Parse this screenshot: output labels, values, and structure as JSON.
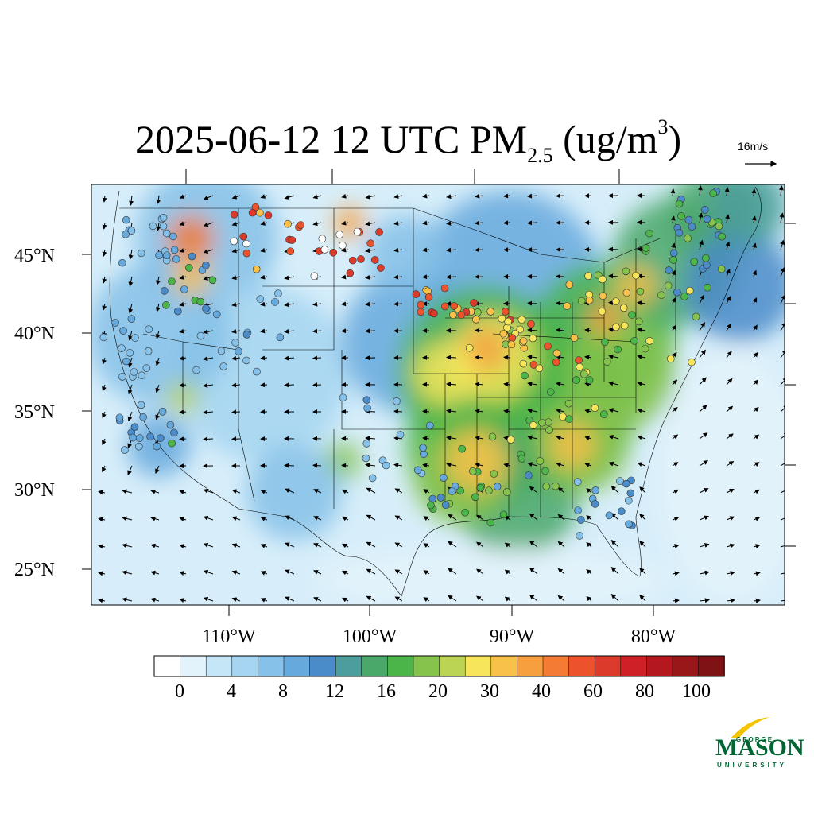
{
  "title": {
    "main": "2025-06-12 12 UTC PM",
    "sub": "2.5",
    "units_pre": " (ug/m",
    "units_sup": "3",
    "units_post": ")"
  },
  "vector_reference": {
    "label": "16m/s"
  },
  "map": {
    "lat_labels": [
      "45°N",
      "40°N",
      "35°N",
      "30°N",
      "25°N"
    ],
    "lon_labels": [
      "110°W",
      "100°W",
      "90°W",
      "80°W"
    ]
  },
  "colorbar": {
    "labels": [
      "0",
      "4",
      "8",
      "12",
      "16",
      "20",
      "30",
      "40",
      "60",
      "80",
      "100"
    ],
    "colors": [
      "#ffffff",
      "#e3f3fb",
      "#c5e6f6",
      "#a5d5f0",
      "#85c1e8",
      "#66a9dd",
      "#4a8bc9",
      "#4b9e9b",
      "#4aa86a",
      "#4bb54a",
      "#85c34c",
      "#bcd453",
      "#f7e65c",
      "#f8c14a",
      "#f79f3e",
      "#f47b33",
      "#ec532c",
      "#dc3a2a",
      "#cf2027",
      "#b5171f",
      "#9a1719",
      "#7e1214"
    ]
  },
  "logo": {
    "top_word": "GEORGE",
    "main_word": "MASON",
    "bottom_word": "UNIVERSITY",
    "brand_color": "#006633"
  }
}
